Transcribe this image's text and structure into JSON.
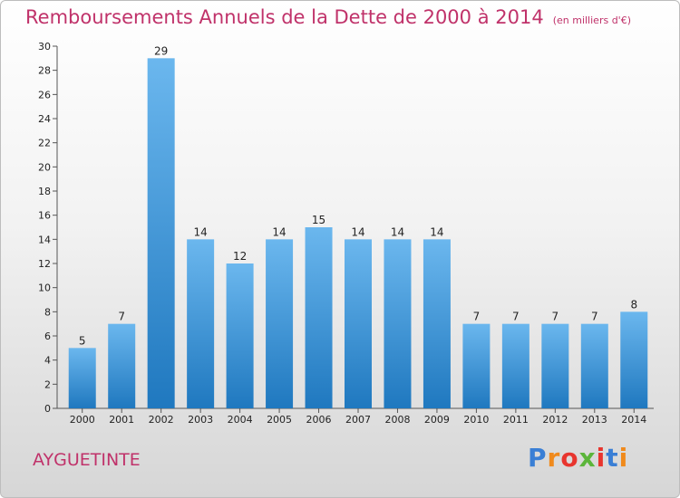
{
  "title": "Remboursements Annuels de la Dette de 2000 à 2014",
  "subtitle": "(en milliers d'€)",
  "place": "AYGUETINTE",
  "logo": {
    "text": "Proxiti",
    "letters": [
      "P",
      "r",
      "o",
      "x",
      "i",
      "t",
      "i"
    ],
    "colors": [
      "#3a7fd5",
      "#f08a1c",
      "#e8352e",
      "#5bb53a",
      "#e8352e",
      "#3a7fd5",
      "#f08a1c"
    ]
  },
  "colors": {
    "bar_light": "#6bb7ee",
    "bar_dark": "#1f78bf",
    "title": "#c0326a"
  },
  "chart_data": {
    "type": "bar",
    "title": "Remboursements Annuels de la Dette de 2000 à 2014",
    "categories": [
      "2000",
      "2001",
      "2002",
      "2003",
      "2004",
      "2005",
      "2006",
      "2007",
      "2008",
      "2009",
      "2010",
      "2011",
      "2012",
      "2013",
      "2014"
    ],
    "values": [
      5,
      7,
      29,
      14,
      12,
      14,
      15,
      14,
      14,
      14,
      7,
      7,
      7,
      7,
      8
    ],
    "yticks": [
      0,
      2,
      4,
      6,
      8,
      10,
      12,
      14,
      16,
      18,
      20,
      22,
      24,
      26,
      28,
      30
    ],
    "ylim": [
      0,
      30
    ],
    "xlabel": "",
    "ylabel": "",
    "grid": false
  }
}
